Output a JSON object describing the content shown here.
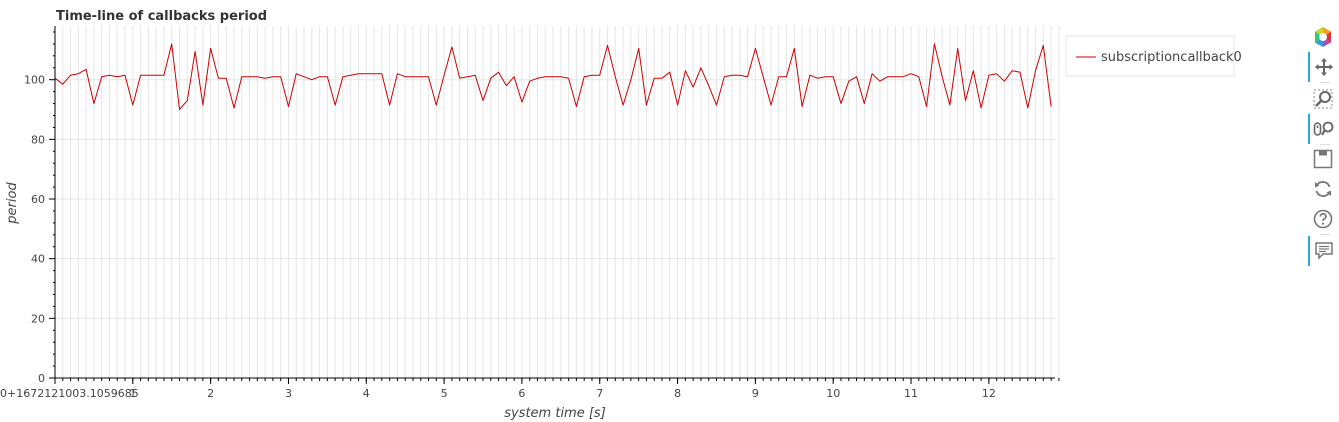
{
  "chart_data": {
    "type": "line",
    "title": "Time-line of callbacks period",
    "xlabel": "system time [s]",
    "ylabel": "period",
    "x_offset_label": "0+1672121003.1059685",
    "x_ticks": [
      1,
      2,
      3,
      4,
      5,
      6,
      7,
      8,
      9,
      10,
      11,
      12
    ],
    "xlim": [
      0,
      12.85
    ],
    "ylim": [
      0,
      118
    ],
    "y_ticks": [
      0,
      20,
      40,
      60,
      80,
      100
    ],
    "grid": true,
    "legend_position": "right",
    "series": [
      {
        "name": "subscriptioncallback0",
        "color": "#cc0000",
        "x": [
          0.0,
          0.1,
          0.2,
          0.3,
          0.4,
          0.5,
          0.6,
          0.7,
          0.8,
          0.9,
          1.0,
          1.1,
          1.2,
          1.4,
          1.5,
          1.6,
          1.7,
          1.8,
          1.9,
          2.0,
          2.1,
          2.2,
          2.3,
          2.4,
          2.5,
          2.6,
          2.7,
          2.8,
          2.9,
          3.0,
          3.1,
          3.2,
          3.3,
          3.4,
          3.5,
          3.6,
          3.7,
          3.8,
          3.9,
          4.0,
          4.1,
          4.2,
          4.3,
          4.4,
          4.5,
          4.6,
          4.7,
          4.8,
          4.9,
          5.0,
          5.1,
          5.2,
          5.3,
          5.4,
          5.5,
          5.6,
          5.7,
          5.8,
          5.9,
          6.0,
          6.1,
          6.2,
          6.3,
          6.4,
          6.5,
          6.6,
          6.7,
          6.8,
          6.9,
          7.0,
          7.1,
          7.2,
          7.3,
          7.4,
          7.5,
          7.6,
          7.7,
          7.8,
          7.9,
          8.0,
          8.1,
          8.2,
          8.3,
          8.4,
          8.5,
          8.6,
          8.7,
          8.8,
          8.9,
          9.0,
          9.1,
          9.2,
          9.3,
          9.4,
          9.5,
          9.6,
          9.7,
          9.8,
          9.9,
          10.0,
          10.1,
          10.2,
          10.3,
          10.4,
          10.5,
          10.6,
          10.7,
          10.8,
          10.9,
          11.0,
          11.1,
          11.2,
          11.3,
          11.4,
          11.5,
          11.6,
          11.7,
          11.8,
          11.9,
          12.0,
          12.1,
          12.2,
          12.3,
          12.4,
          12.5,
          12.6,
          12.7,
          12.8
        ],
        "values": [
          100.5,
          98.5,
          101.5,
          102.0,
          103.5,
          92.0,
          101.0,
          101.5,
          101.0,
          101.5,
          91.5,
          101.5,
          101.5,
          101.5,
          112.0,
          90.0,
          93.0,
          109.5,
          91.5,
          110.5,
          100.5,
          100.5,
          90.5,
          101.0,
          101.0,
          101.0,
          100.5,
          101.0,
          101.0,
          91.0,
          102.0,
          101.0,
          100.0,
          101.0,
          101.0,
          91.5,
          101.0,
          101.5,
          102.0,
          102.0,
          102.0,
          102.0,
          91.5,
          102.0,
          101.0,
          101.0,
          101.0,
          101.0,
          91.5,
          101.5,
          111.0,
          100.5,
          101.0,
          101.5,
          93.0,
          100.5,
          102.5,
          98.0,
          101.0,
          92.5,
          99.5,
          100.5,
          101.0,
          101.0,
          101.0,
          100.5,
          91.0,
          101.0,
          101.5,
          101.5,
          111.5,
          101.0,
          91.5,
          100.0,
          110.5,
          91.5,
          100.5,
          100.5,
          102.5,
          91.5,
          103.0,
          97.5,
          104.0,
          98.0,
          91.5,
          101.0,
          101.5,
          101.5,
          101.0,
          110.5,
          101.0,
          91.5,
          101.0,
          101.0,
          110.5,
          91.0,
          101.5,
          100.5,
          101.0,
          101.0,
          92.0,
          99.5,
          101.0,
          92.0,
          102.0,
          99.5,
          101.0,
          101.0,
          101.0,
          102.0,
          101.0,
          91.0,
          112.0,
          101.0,
          91.5,
          110.5,
          93.0,
          103.0,
          90.5,
          101.5,
          102.0,
          99.5,
          103.0,
          102.5,
          90.5,
          103.0,
          111.5,
          91.0
        ]
      }
    ]
  }
}
